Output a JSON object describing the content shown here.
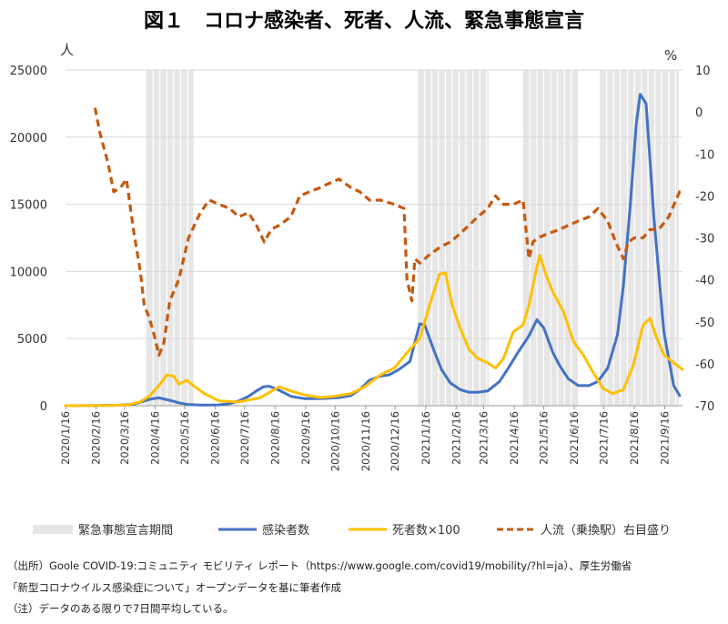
{
  "title": "図１　コロナ感染者、死者、人流、緊急事態宣言",
  "chart_data": {
    "type": "line",
    "left_axis_unit": "人",
    "right_axis_unit": "%",
    "left_ylim": [
      0,
      25000
    ],
    "left_ticks": [
      0,
      5000,
      10000,
      15000,
      20000,
      25000
    ],
    "right_ylim": [
      -70,
      10
    ],
    "right_ticks": [
      -70,
      -60,
      -50,
      -40,
      -30,
      -20,
      -10,
      0,
      10
    ],
    "x_range": [
      "2020-01-16",
      "2021-10-04"
    ],
    "x_tick_labels": [
      "2020/1/16",
      "2020/2/16",
      "2020/3/16",
      "2020/4/16",
      "2020/5/16",
      "2020/6/16",
      "2020/7/16",
      "2020/8/16",
      "2020/9/16",
      "2020/10/16",
      "2020/11/16",
      "2020/12/16",
      "2021/1/16",
      "2021/2/16",
      "2021/3/16",
      "2021/4/16",
      "2021/5/16",
      "2021/6/16",
      "2021/7/16",
      "2021/8/16",
      "2021/9/16"
    ],
    "x_tick_dates": [
      "2020-01-16",
      "2020-02-16",
      "2020-03-16",
      "2020-04-16",
      "2020-05-16",
      "2020-06-16",
      "2020-07-16",
      "2020-08-16",
      "2020-09-16",
      "2020-10-16",
      "2020-11-16",
      "2020-12-16",
      "2021-01-16",
      "2021-02-16",
      "2021-03-16",
      "2021-04-16",
      "2021-05-16",
      "2021-06-16",
      "2021-07-16",
      "2021-08-16",
      "2021-09-16"
    ],
    "gridlines": "horizontal",
    "legend_placement": "bottom",
    "emergency_periods": [
      {
        "start": "2020-04-07",
        "end": "2020-05-25"
      },
      {
        "start": "2021-01-08",
        "end": "2021-03-21"
      },
      {
        "start": "2021-04-25",
        "end": "2021-06-20"
      },
      {
        "start": "2021-07-12",
        "end": "2021-09-30"
      }
    ],
    "series": [
      {
        "name": "感染者数",
        "axis": "left",
        "color": "#4472C4",
        "style": "solid",
        "x": [
          "2020-01-16",
          "2020-02-15",
          "2020-03-10",
          "2020-03-25",
          "2020-04-05",
          "2020-04-12",
          "2020-04-20",
          "2020-05-01",
          "2020-05-10",
          "2020-05-20",
          "2020-06-05",
          "2020-06-20",
          "2020-07-01",
          "2020-07-10",
          "2020-07-20",
          "2020-07-28",
          "2020-08-04",
          "2020-08-10",
          "2020-08-20",
          "2020-09-01",
          "2020-09-15",
          "2020-10-01",
          "2020-10-20",
          "2020-11-01",
          "2020-11-10",
          "2020-11-20",
          "2020-12-01",
          "2020-12-10",
          "2020-12-20",
          "2020-12-31",
          "2021-01-06",
          "2021-01-10",
          "2021-01-15",
          "2021-01-25",
          "2021-02-01",
          "2021-02-10",
          "2021-02-20",
          "2021-03-01",
          "2021-03-10",
          "2021-03-20",
          "2021-04-01",
          "2021-04-10",
          "2021-04-20",
          "2021-05-01",
          "2021-05-09",
          "2021-05-16",
          "2021-05-25",
          "2021-06-01",
          "2021-06-10",
          "2021-06-20",
          "2021-07-01",
          "2021-07-10",
          "2021-07-20",
          "2021-07-30",
          "2021-08-05",
          "2021-08-12",
          "2021-08-18",
          "2021-08-22",
          "2021-08-28",
          "2021-09-05",
          "2021-09-15",
          "2021-09-25",
          "2021-10-01"
        ],
        "y": [
          0,
          10,
          40,
          100,
          350,
          500,
          580,
          400,
          220,
          80,
          40,
          60,
          150,
          350,
          700,
          1100,
          1400,
          1450,
          1150,
          700,
          520,
          520,
          600,
          750,
          1200,
          1900,
          2200,
          2300,
          2700,
          3300,
          5000,
          6100,
          6000,
          4000,
          2700,
          1700,
          1200,
          1000,
          1000,
          1100,
          1800,
          2800,
          4000,
          5200,
          6400,
          5800,
          4000,
          3000,
          2000,
          1500,
          1500,
          1800,
          2800,
          5300,
          9000,
          15000,
          21000,
          23200,
          22500,
          14000,
          5500,
          1500,
          750
        ]
      },
      {
        "name": "死者数×100",
        "axis": "left",
        "color": "#FFC000",
        "style": "solid",
        "x": [
          "2020-01-16",
          "2020-03-01",
          "2020-03-20",
          "2020-04-01",
          "2020-04-10",
          "2020-04-20",
          "2020-04-28",
          "2020-05-05",
          "2020-05-10",
          "2020-05-18",
          "2020-05-25",
          "2020-06-05",
          "2020-06-20",
          "2020-07-10",
          "2020-08-01",
          "2020-08-20",
          "2020-09-01",
          "2020-09-15",
          "2020-10-01",
          "2020-10-15",
          "2020-11-01",
          "2020-11-15",
          "2020-12-01",
          "2020-12-15",
          "2020-12-31",
          "2021-01-10",
          "2021-01-20",
          "2021-01-30",
          "2021-02-05",
          "2021-02-12",
          "2021-02-20",
          "2021-03-01",
          "2021-03-10",
          "2021-03-20",
          "2021-03-28",
          "2021-04-05",
          "2021-04-15",
          "2021-04-25",
          "2021-05-01",
          "2021-05-08",
          "2021-05-12",
          "2021-05-18",
          "2021-05-25",
          "2021-06-05",
          "2021-06-15",
          "2021-06-25",
          "2021-07-05",
          "2021-07-15",
          "2021-07-25",
          "2021-08-05",
          "2021-08-15",
          "2021-08-25",
          "2021-09-01",
          "2021-09-08",
          "2021-09-15",
          "2021-09-25",
          "2021-10-04"
        ],
        "y": [
          0,
          20,
          60,
          300,
          700,
          1500,
          2300,
          2200,
          1600,
          1900,
          1500,
          900,
          350,
          280,
          600,
          1400,
          1100,
          800,
          600,
          700,
          900,
          1400,
          2300,
          2800,
          4200,
          5000,
          7500,
          9800,
          9900,
          7500,
          5800,
          4200,
          3500,
          3200,
          2800,
          3500,
          5500,
          6000,
          7500,
          10000,
          11200,
          9800,
          8500,
          7000,
          4800,
          3800,
          2500,
          1300,
          900,
          1200,
          3000,
          6000,
          6500,
          5000,
          3800,
          3200,
          2700
        ]
      },
      {
        "name": "人流（乗換駅）右目盛り",
        "axis": "right",
        "color": "#C55A11",
        "style": "dashed",
        "x": [
          "2020-02-15",
          "2020-02-20",
          "2020-02-28",
          "2020-03-05",
          "2020-03-12",
          "2020-03-18",
          "2020-03-25",
          "2020-04-01",
          "2020-04-05",
          "2020-04-10",
          "2020-04-15",
          "2020-04-20",
          "2020-04-25",
          "2020-05-01",
          "2020-05-10",
          "2020-05-20",
          "2020-06-01",
          "2020-06-10",
          "2020-06-20",
          "2020-07-01",
          "2020-07-10",
          "2020-07-20",
          "2020-07-28",
          "2020-08-05",
          "2020-08-12",
          "2020-08-20",
          "2020-09-01",
          "2020-09-10",
          "2020-09-20",
          "2020-10-01",
          "2020-10-10",
          "2020-10-20",
          "2020-11-01",
          "2020-11-10",
          "2020-11-20",
          "2020-12-01",
          "2020-12-15",
          "2020-12-25",
          "2020-12-28",
          "2021-01-02",
          "2021-01-05",
          "2021-01-10",
          "2021-01-20",
          "2021-02-01",
          "2021-02-10",
          "2021-02-20",
          "2021-03-01",
          "2021-03-10",
          "2021-03-20",
          "2021-03-28",
          "2021-04-05",
          "2021-04-15",
          "2021-04-25",
          "2021-05-01",
          "2021-05-05",
          "2021-05-10",
          "2021-05-20",
          "2021-06-01",
          "2021-06-10",
          "2021-06-20",
          "2021-07-01",
          "2021-07-10",
          "2021-07-20",
          "2021-07-28",
          "2021-08-01",
          "2021-08-05",
          "2021-08-10",
          "2021-08-16",
          "2021-08-25",
          "2021-09-01",
          "2021-09-10",
          "2021-09-20",
          "2021-10-01",
          "2021-10-04"
        ],
        "y": [
          1,
          -5,
          -12,
          -19,
          -18,
          -16,
          -28,
          -38,
          -46,
          -49,
          -53,
          -58,
          -55,
          -45,
          -40,
          -30,
          -24,
          -21,
          -22,
          -23,
          -25,
          -24,
          -27,
          -31,
          -28,
          -27,
          -25,
          -20,
          -19,
          -18,
          -17,
          -16,
          -18,
          -19,
          -21,
          -21,
          -22,
          -23,
          -40,
          -45,
          -35,
          -36,
          -34,
          -32,
          -31,
          -29,
          -27,
          -25,
          -23,
          -20,
          -22,
          -22,
          -21,
          -35,
          -31,
          -30,
          -29,
          -28,
          -27,
          -26,
          -25,
          -23,
          -26,
          -31,
          -33,
          -35,
          -31,
          -30,
          -30,
          -28,
          -28,
          -25,
          -19,
          -19
        ]
      }
    ]
  },
  "legend": {
    "emergency_label": "緊急事態宣言期間",
    "emergency_color": "#E6E6E6"
  },
  "notes": {
    "source_line1": "（出所）Goole COVID-19:コミュニティ モビリティ レポート（https://www.google.com/covid19/mobility/?hl=ja）、厚生労働省",
    "source_line2": "「新型コロナウイルス感染症について」オープンデータを基に筆者作成",
    "note_line": "（注）データのある限りで7日間平均している。"
  }
}
